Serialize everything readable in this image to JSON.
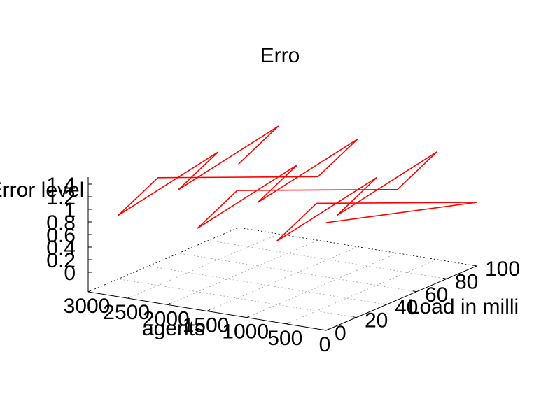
{
  "chart_data": {
    "type": "line",
    "title": "Erro",
    "xlabel": "agents",
    "ylabel": "Load in milli",
    "zlabel": "Error level",
    "x_ticks": [
      "3000",
      "2500",
      "2000",
      "1500",
      "1000",
      "500",
      "0"
    ],
    "y_ticks": [
      "0",
      "20",
      "40",
      "60",
      "80",
      "100"
    ],
    "z_ticks": [
      "0",
      "0.2",
      "0.4",
      "0.6",
      "0.8",
      "1",
      "1.2",
      "1.4"
    ],
    "xlim": [
      0,
      3000
    ],
    "ylim": [
      0,
      100
    ],
    "zlim": [
      0,
      1.4
    ],
    "grid": true,
    "series_color": "#ff0000",
    "series": [
      {
        "points": [
          [
            3000,
            100,
            0.7
          ],
          [
            2500,
            100,
            1.4
          ],
          [
            3000,
            60,
            0.7
          ],
          [
            2500,
            60,
            1.4
          ],
          [
            3000,
            20,
            0.7
          ],
          [
            2500,
            20,
            1.4
          ],
          [
            2000,
            100,
            0.7
          ],
          [
            1500,
            100,
            1.4
          ],
          [
            2000,
            60,
            0.7
          ],
          [
            1500,
            60,
            1.4
          ],
          [
            2000,
            20,
            0.7
          ],
          [
            1500,
            20,
            1.4
          ],
          [
            1000,
            100,
            0.7
          ],
          [
            500,
            100,
            1.4
          ],
          [
            1000,
            60,
            0.7
          ],
          [
            500,
            60,
            1.4
          ],
          [
            1000,
            20,
            0.7
          ],
          [
            500,
            20,
            1.4
          ],
          [
            0,
            100,
            0.7
          ],
          [
            0,
            0,
            1.4
          ]
        ]
      }
    ]
  }
}
